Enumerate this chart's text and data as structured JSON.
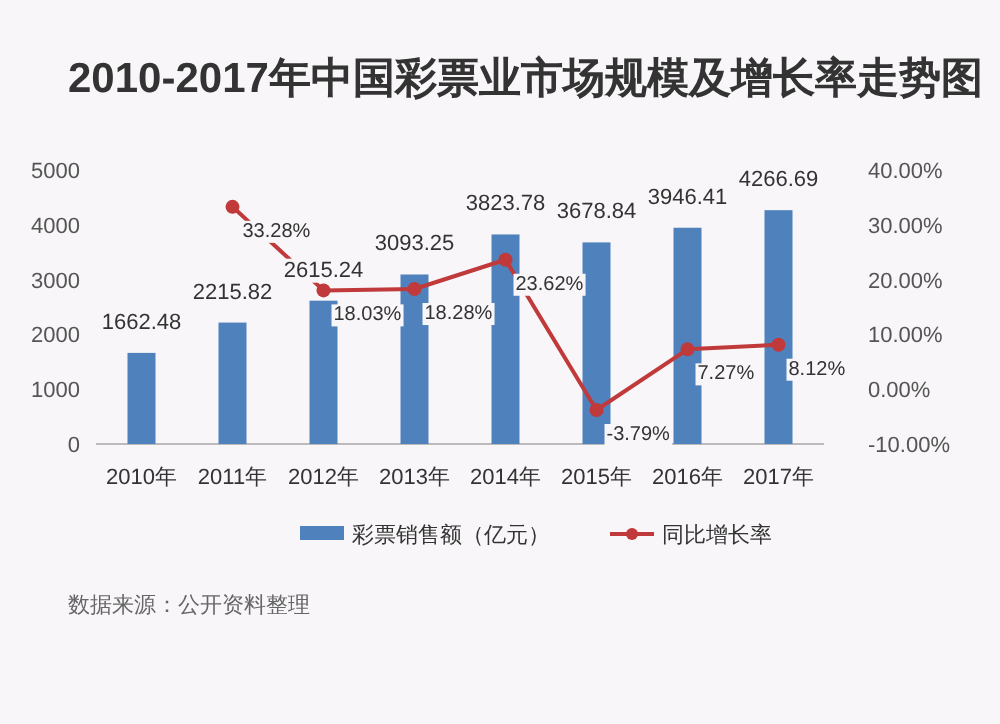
{
  "chart_data": {
    "type": "bar",
    "title": "2010-2017年中国彩票业市场规模及增长率走势图",
    "categories": [
      "2010年",
      "2011年",
      "2012年",
      "2013年",
      "2014年",
      "2015年",
      "2016年",
      "2017年"
    ],
    "series": [
      {
        "name": "彩票销售额（亿元）",
        "color": "#4f81bd",
        "values": [
          1662.48,
          2215.82,
          2615.24,
          3093.25,
          3823.78,
          3678.84,
          3946.41,
          4266.69
        ],
        "value_labels": [
          "1662.48",
          "2215.82",
          "2615.24",
          "3093.25",
          "3823.78",
          "3678.84",
          "3946.41",
          "4266.69"
        ]
      },
      {
        "name": "同比增长率",
        "type": "line",
        "axis": "y2",
        "color": "#c0393b",
        "marker": "circle",
        "values": [
          null,
          33.28,
          18.03,
          18.28,
          23.62,
          -3.79,
          7.27,
          8.12
        ],
        "value_labels": [
          null,
          "33.28%",
          "18.03%",
          "18.28%",
          "23.62%",
          "-3.79%",
          "7.27%",
          "8.12%"
        ]
      }
    ],
    "ylim": [
      0,
      5000
    ],
    "yticks": [
      0,
      1000,
      2000,
      3000,
      4000,
      5000
    ],
    "y2lim": [
      -10,
      40
    ],
    "y2ticks": [
      {
        "value": -10,
        "label": "-10.00%"
      },
      {
        "value": 0,
        "label": "0.00%"
      },
      {
        "value": 10,
        "label": "10.00%"
      },
      {
        "value": 20,
        "label": "20.00%"
      },
      {
        "value": 30,
        "label": "30.00%"
      },
      {
        "value": 40,
        "label": "40.00%"
      }
    ],
    "legend": "bottom",
    "annotations": [
      "数据来源：公开资料整理"
    ]
  }
}
